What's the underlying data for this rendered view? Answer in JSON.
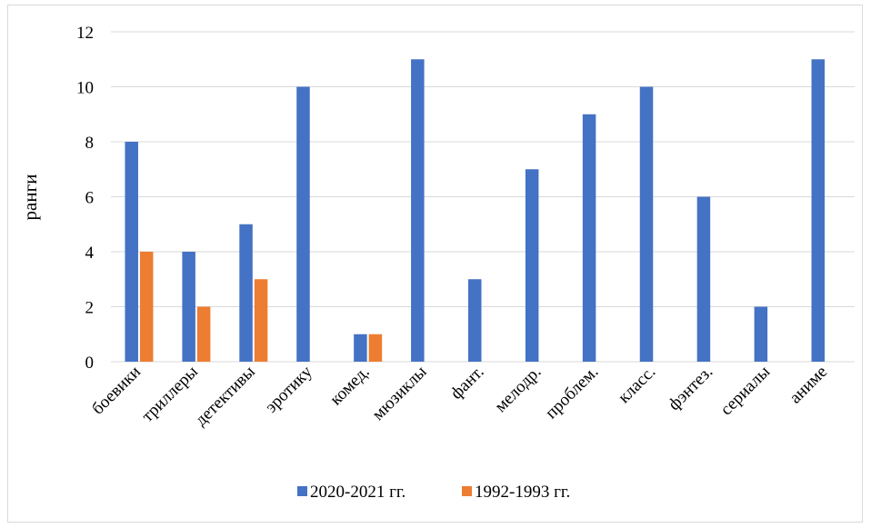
{
  "chart_data": {
    "type": "bar",
    "title": "",
    "xlabel": "",
    "ylabel": "ранги",
    "ylim": [
      0,
      12
    ],
    "yticks": [
      0,
      2,
      4,
      6,
      8,
      10,
      12
    ],
    "grid": true,
    "legend_position": "bottom",
    "categories": [
      "боевики",
      "триллеры",
      "детективы",
      "эротику",
      "комед.",
      "мюзиклы",
      "фант.",
      "мелодр.",
      "проблем.",
      "класс.",
      "фэнтез.",
      "сериалы",
      "аниме"
    ],
    "series": [
      {
        "name": "2020-2021 гг.",
        "color": "#4472c4",
        "values": [
          8,
          4,
          5,
          10,
          1,
          11,
          3,
          7,
          9,
          10,
          6,
          2,
          11
        ]
      },
      {
        "name": "1992-1993 гг.",
        "color": "#ed7d31",
        "values": [
          4,
          2,
          3,
          null,
          1,
          null,
          null,
          null,
          null,
          null,
          null,
          null,
          null
        ]
      }
    ]
  }
}
